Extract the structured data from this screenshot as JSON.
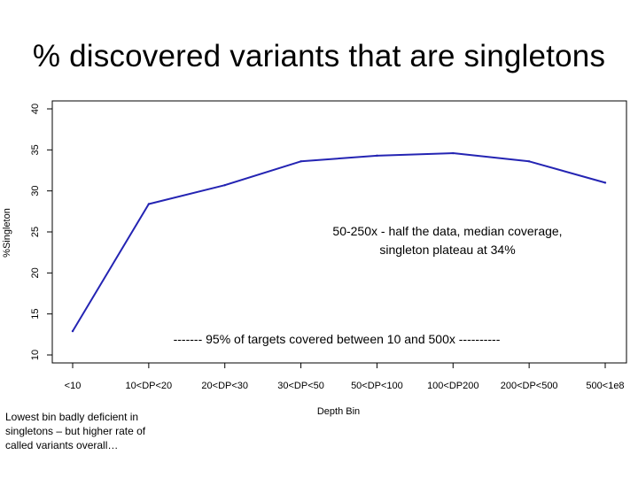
{
  "slide": {
    "title": "% discovered variants that are singletons"
  },
  "chart_data": {
    "type": "line",
    "title": "% discovered variants that are singletons",
    "xlabel": "Depth Bin",
    "ylabel": "%Singleton",
    "categories": [
      "<10",
      "10<DP<20",
      "20<DP<30",
      "30<DP<50",
      "50<DP<100",
      "100<DP200",
      "200<DP<500",
      "500<1e8"
    ],
    "series": [
      {
        "name": "%Singleton",
        "values": [
          12.9,
          28.4,
          30.7,
          33.6,
          34.3,
          34.6,
          33.6,
          31.0
        ],
        "color": "#2424b3"
      }
    ],
    "ylim": [
      10,
      40
    ],
    "yticks": [
      10,
      15,
      20,
      25,
      30,
      35,
      40
    ],
    "grid": false
  },
  "annotations": {
    "plateau": {
      "line1": "50-250x  - half the data, median coverage,",
      "line2": "singleton plateau at 34%"
    },
    "targets": "------- 95% of targets covered between 10 and 500x ----------"
  },
  "footnote": {
    "line1": "Lowest bin badly deficient in",
    "line2": "singletons – but higher rate of",
    "line3": "called variants overall…"
  }
}
